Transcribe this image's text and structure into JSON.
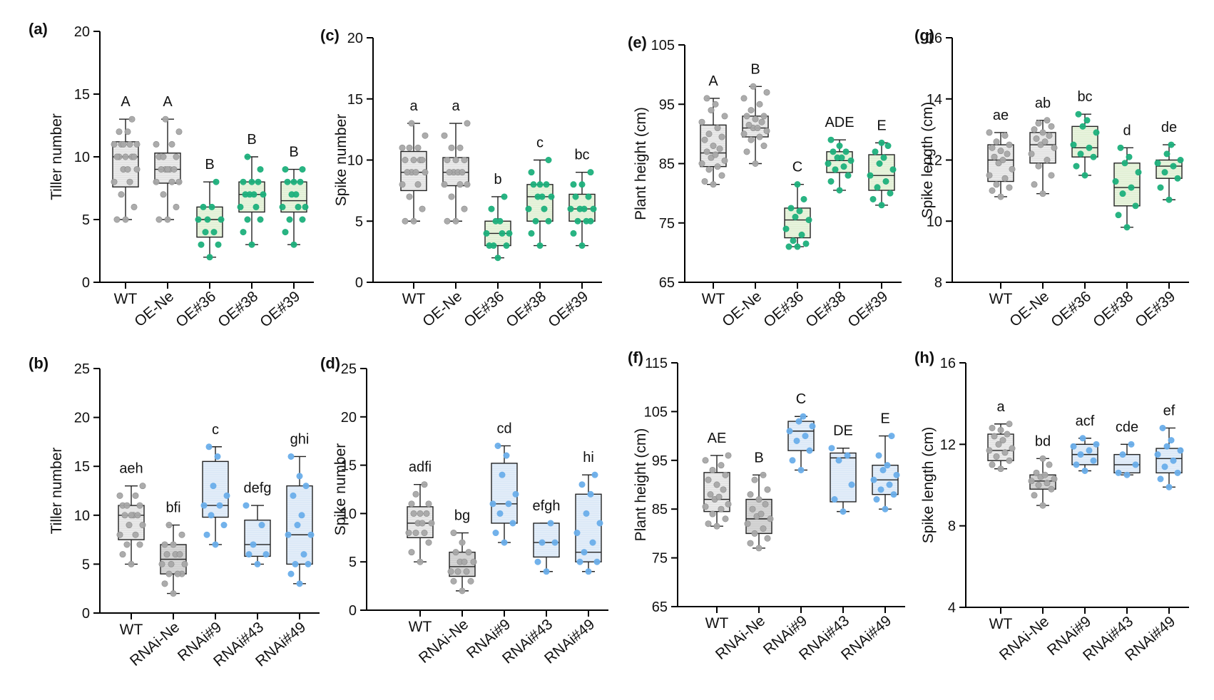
{
  "figure": {
    "colors": {
      "gray_box": "#e3e3e3",
      "gray_box_dark": "#cfcfcf",
      "gray_dot": "#a8a8a8",
      "green_box": "#e2f0d6",
      "green_dot": "#1db07c",
      "blue_box": "#dce9f7",
      "blue_dot": "#6aaeea",
      "axis": "#000000"
    }
  },
  "chart_data": [
    {
      "panel": "(a)",
      "type": "box",
      "ylabel": "Tiller number",
      "ylim": [
        0,
        20
      ],
      "yticks": [
        0,
        5,
        10,
        15,
        20
      ],
      "categories": [
        "WT",
        "OE-Ne",
        "OE#36",
        "OE#38",
        "OE#39"
      ],
      "box_styles": [
        "gray",
        "gray",
        "green",
        "green",
        "green"
      ],
      "letters": [
        "A",
        "A",
        "B",
        "B",
        "B"
      ],
      "stats": [
        {
          "min": 5,
          "q1": 7.6,
          "median": 10,
          "q3": 11.2,
          "max": 13
        },
        {
          "min": 5,
          "q1": 7.9,
          "median": 9,
          "q3": 10.3,
          "max": 13
        },
        {
          "min": 2,
          "q1": 3.6,
          "median": 5,
          "q3": 6,
          "max": 8
        },
        {
          "min": 3,
          "q1": 5.6,
          "median": 7,
          "q3": 8,
          "max": 10
        },
        {
          "min": 3,
          "q1": 5.6,
          "median": 6.5,
          "q3": 8,
          "max": 9
        }
      ],
      "points": [
        [
          5,
          5,
          6,
          7,
          8,
          8,
          9,
          9,
          9,
          10,
          10,
          10,
          10,
          10,
          11,
          11,
          11,
          11,
          11,
          12,
          12,
          13
        ],
        [
          5,
          5,
          6,
          7,
          8,
          8,
          8,
          9,
          9,
          9,
          9,
          9,
          10,
          10,
          10,
          11,
          11,
          12,
          13
        ],
        [
          2,
          3,
          3,
          4,
          4,
          5,
          5,
          5,
          6,
          6,
          8
        ],
        [
          3,
          4,
          5,
          5,
          6,
          6,
          7,
          7,
          7,
          7,
          8,
          8,
          8,
          9,
          10
        ],
        [
          3,
          4,
          5,
          5,
          6,
          6,
          6,
          7,
          7,
          8,
          8,
          8,
          9,
          9
        ]
      ]
    },
    {
      "panel": "(c)",
      "type": "box",
      "ylabel": "Spike number",
      "ylim": [
        0,
        20
      ],
      "yticks": [
        0,
        5,
        10,
        15,
        20
      ],
      "categories": [
        "WT",
        "OE-Ne",
        "OE#36",
        "OE#38",
        "OE#39"
      ],
      "box_styles": [
        "gray",
        "gray",
        "green",
        "green",
        "green"
      ],
      "letters": [
        "a",
        "a",
        "b",
        "c",
        "bc"
      ],
      "stats": [
        {
          "min": 5,
          "q1": 7.5,
          "median": 9,
          "q3": 10.7,
          "max": 13
        },
        {
          "min": 5,
          "q1": 7.9,
          "median": 9,
          "q3": 10.2,
          "max": 13
        },
        {
          "min": 2,
          "q1": 3,
          "median": 4,
          "q3": 5,
          "max": 7
        },
        {
          "min": 3,
          "q1": 5,
          "median": 7,
          "q3": 8,
          "max": 10
        },
        {
          "min": 3,
          "q1": 5,
          "median": 6,
          "q3": 7.2,
          "max": 9
        }
      ],
      "points": [
        [
          5,
          5,
          6,
          7,
          8,
          8,
          9,
          9,
          9,
          9,
          10,
          10,
          10,
          10,
          11,
          11,
          11,
          12,
          13
        ],
        [
          5,
          5,
          6,
          7,
          8,
          8,
          8,
          9,
          9,
          9,
          9,
          10,
          10,
          10,
          11,
          11,
          12,
          13
        ],
        [
          2,
          3,
          3,
          3,
          4,
          4,
          4,
          5,
          5,
          6,
          7
        ],
        [
          3,
          4,
          5,
          5,
          6,
          6,
          7,
          7,
          7,
          8,
          8,
          8,
          9,
          10
        ],
        [
          3,
          4,
          5,
          5,
          5,
          6,
          6,
          6,
          6,
          7,
          7,
          8,
          8,
          9
        ]
      ]
    },
    {
      "panel": "(e)",
      "type": "box",
      "ylabel": "Plant height (cm)",
      "ylim": [
        65,
        105
      ],
      "yticks": [
        65,
        75,
        85,
        95,
        105
      ],
      "categories": [
        "WT",
        "OE-Ne",
        "OE#36",
        "OE#38",
        "OE#39"
      ],
      "box_styles": [
        "gray",
        "gray",
        "green",
        "green",
        "green"
      ],
      "letters": [
        "A",
        "B",
        "C",
        "ADE",
        "E"
      ],
      "stats": [
        {
          "min": 81.5,
          "q1": 84.5,
          "median": 86.8,
          "q3": 91.5,
          "max": 96
        },
        {
          "min": 85,
          "q1": 89.5,
          "median": 91,
          "q3": 93,
          "max": 98
        },
        {
          "min": 71,
          "q1": 72.5,
          "median": 75.5,
          "q3": 77.5,
          "max": 81.5
        },
        {
          "min": 80.5,
          "q1": 83.5,
          "median": 85.5,
          "q3": 87,
          "max": 89
        },
        {
          "min": 78,
          "q1": 80.5,
          "median": 83,
          "q3": 86.5,
          "max": 88.5
        }
      ],
      "points": [
        [
          81.5,
          82,
          83,
          84,
          84.5,
          85,
          85.5,
          86,
          86.5,
          87,
          87.5,
          88,
          89,
          89.5,
          90,
          91,
          92,
          93,
          94,
          95,
          96
        ],
        [
          85,
          87,
          88,
          89,
          89.5,
          90,
          90.5,
          91,
          91,
          91.5,
          92,
          92.5,
          93,
          93,
          94,
          95,
          96,
          97,
          98
        ],
        [
          71,
          71,
          71.5,
          72,
          73,
          74,
          75.5,
          76,
          77,
          77.5,
          79,
          81.5
        ],
        [
          80.5,
          82,
          83,
          84,
          84.5,
          85,
          85.5,
          86,
          86,
          87,
          87,
          88,
          89
        ],
        [
          78,
          79,
          80,
          81,
          82,
          83,
          84,
          85,
          86,
          87,
          88,
          88.5
        ]
      ]
    },
    {
      "panel": "(g)",
      "type": "box",
      "ylabel": "Spike length (cm)",
      "ylim": [
        8,
        16
      ],
      "yticks": [
        8,
        10,
        12,
        14,
        16
      ],
      "categories": [
        "WT",
        "OE-Ne",
        "OE#36",
        "OE#38",
        "OE#39"
      ],
      "box_styles": [
        "gray",
        "gray",
        "green",
        "green",
        "green"
      ],
      "letters": [
        "ae",
        "ab",
        "bc",
        "d",
        "de"
      ],
      "stats": [
        {
          "min": 10.8,
          "q1": 11.3,
          "median": 12,
          "q3": 12.5,
          "max": 12.9
        },
        {
          "min": 10.9,
          "q1": 11.9,
          "median": 12.5,
          "q3": 12.9,
          "max": 13.3
        },
        {
          "min": 11.5,
          "q1": 12.1,
          "median": 12.4,
          "q3": 13.1,
          "max": 13.5
        },
        {
          "min": 9.8,
          "q1": 10.5,
          "median": 11.1,
          "q3": 11.9,
          "max": 12.4
        },
        {
          "min": 10.7,
          "q1": 11.4,
          "median": 11.8,
          "q3": 12,
          "max": 12.5
        }
      ],
      "points": [
        [
          10.8,
          11,
          11.1,
          11.2,
          11.4,
          11.5,
          11.7,
          11.9,
          12,
          12.1,
          12.2,
          12.3,
          12.4,
          12.5,
          12.6,
          12.8,
          12.9
        ],
        [
          10.9,
          11.2,
          11.5,
          11.8,
          12,
          12.2,
          12.4,
          12.5,
          12.6,
          12.7,
          12.8,
          12.9,
          13,
          13.1,
          13.2,
          13.3
        ],
        [
          11.5,
          11.8,
          12.1,
          12.2,
          12.4,
          12.5,
          12.9,
          13.1,
          13.3,
          13.5
        ],
        [
          9.8,
          10.2,
          10.5,
          10.9,
          11.1,
          11.3,
          11.6,
          11.9,
          12.1,
          12.4
        ],
        [
          10.7,
          11.1,
          11.4,
          11.6,
          11.8,
          11.9,
          12,
          12.2,
          12.5
        ]
      ]
    },
    {
      "panel": "(b)",
      "type": "box",
      "ylabel": "Tiller number",
      "ylim": [
        0,
        25
      ],
      "yticks": [
        0,
        5,
        10,
        15,
        20,
        25
      ],
      "categories": [
        "WT",
        "RNAi-Ne",
        "RNAi#9",
        "RNAi#43",
        "RNAi#49"
      ],
      "box_styles": [
        "gray",
        "gray",
        "blue",
        "blue",
        "blue"
      ],
      "letters": [
        "aeh",
        "bfi",
        "c",
        "defg",
        "ghi"
      ],
      "stats": [
        {
          "min": 5,
          "q1": 7.5,
          "median": 10,
          "q3": 11,
          "max": 13
        },
        {
          "min": 2,
          "q1": 4,
          "median": 5.5,
          "q3": 7,
          "max": 9
        },
        {
          "min": 7,
          "q1": 9.8,
          "median": 11,
          "q3": 15.5,
          "max": 17
        },
        {
          "min": 5,
          "q1": 5.8,
          "median": 7,
          "q3": 9.5,
          "max": 11
        },
        {
          "min": 3,
          "q1": 5,
          "median": 8,
          "q3": 13,
          "max": 16
        }
      ],
      "points": [
        [
          5,
          6,
          7,
          7,
          8,
          8,
          9,
          9,
          10,
          10,
          10,
          10,
          11,
          11,
          11,
          12,
          12,
          13
        ],
        [
          2,
          3,
          4,
          4,
          4,
          5,
          5,
          5,
          6,
          6,
          6,
          7,
          7,
          8,
          9
        ],
        [
          7,
          8,
          9,
          10,
          11,
          11,
          12,
          13,
          16,
          17
        ],
        [
          5,
          6,
          6,
          7,
          9,
          11
        ],
        [
          3,
          4,
          5,
          5,
          6,
          8,
          8,
          9,
          10,
          12,
          13,
          14,
          16
        ]
      ]
    },
    {
      "panel": "(d)",
      "type": "box",
      "ylabel": "Spike number",
      "ylim": [
        0,
        25
      ],
      "yticks": [
        0,
        5,
        10,
        15,
        20,
        25
      ],
      "categories": [
        "WT",
        "RNAi-Ne",
        "RNAi#9",
        "RNAi#43",
        "RNAi#49"
      ],
      "box_styles": [
        "gray",
        "gray",
        "blue",
        "blue",
        "blue"
      ],
      "letters": [
        "adfi",
        "bg",
        "cd",
        "efgh",
        "hi"
      ],
      "stats": [
        {
          "min": 5,
          "q1": 7.5,
          "median": 9,
          "q3": 10.7,
          "max": 13
        },
        {
          "min": 2,
          "q1": 3.5,
          "median": 4.5,
          "q3": 6,
          "max": 8
        },
        {
          "min": 7,
          "q1": 9,
          "median": 11,
          "q3": 15.2,
          "max": 17
        },
        {
          "min": 4,
          "q1": 5.5,
          "median": 7,
          "q3": 9,
          "max": 9
        },
        {
          "min": 4,
          "q1": 5,
          "median": 6,
          "q3": 12,
          "max": 14
        }
      ],
      "points": [
        [
          5,
          6,
          7,
          8,
          8,
          8,
          9,
          9,
          9,
          10,
          10,
          10,
          11,
          11,
          12,
          13
        ],
        [
          2,
          3,
          3,
          4,
          4,
          4,
          5,
          5,
          5,
          6,
          6,
          7,
          8
        ],
        [
          7,
          8,
          9,
          10,
          11,
          11,
          12,
          14,
          16,
          17
        ],
        [
          4,
          5,
          7,
          7,
          9
        ],
        [
          4,
          5,
          5,
          6,
          7,
          8,
          9,
          10,
          12,
          13,
          14
        ]
      ]
    },
    {
      "panel": "(f)",
      "type": "box",
      "ylabel": "Plant height (cm)",
      "ylim": [
        65,
        115
      ],
      "yticks": [
        65,
        75,
        85,
        95,
        105,
        115
      ],
      "categories": [
        "WT",
        "RNAi-Ne",
        "RNAi#9",
        "RNAi#43",
        "RNAi#49"
      ],
      "box_styles": [
        "gray",
        "gray",
        "blue",
        "blue",
        "blue"
      ],
      "letters": [
        "AE",
        "B",
        "C",
        "DE",
        "E"
      ],
      "stats": [
        {
          "min": 81.5,
          "q1": 84.5,
          "median": 87,
          "q3": 92.5,
          "max": 96
        },
        {
          "min": 77,
          "q1": 80,
          "median": 83,
          "q3": 87,
          "max": 92
        },
        {
          "min": 93,
          "q1": 97,
          "median": 101,
          "q3": 103,
          "max": 104
        },
        {
          "min": 84.5,
          "q1": 86.5,
          "median": 95.5,
          "q3": 96.5,
          "max": 97.5
        },
        {
          "min": 85,
          "q1": 88,
          "median": 91,
          "q3": 94,
          "max": 100
        }
      ],
      "points": [
        [
          81.5,
          82,
          83,
          84,
          85,
          85.5,
          86,
          87,
          87.5,
          88,
          89,
          90,
          91,
          92,
          93,
          94,
          95,
          96
        ],
        [
          77,
          78,
          79,
          80,
          81,
          82,
          83,
          83.5,
          84,
          85,
          86,
          87,
          88,
          89,
          91,
          92
        ],
        [
          93,
          95,
          97,
          99,
          100,
          101,
          102,
          103,
          104
        ],
        [
          84.5,
          87,
          90,
          95,
          96,
          97.5
        ],
        [
          85,
          87,
          88,
          89,
          90,
          91,
          92,
          93,
          94,
          96,
          100
        ]
      ]
    },
    {
      "panel": "(h)",
      "type": "box",
      "ylabel": "Spike length (cm)",
      "ylim": [
        4,
        16
      ],
      "yticks": [
        4,
        8,
        12,
        16
      ],
      "categories": [
        "WT",
        "RNAi-Ne",
        "RNAi#9",
        "RNAi#43",
        "RNAi#49"
      ],
      "box_styles": [
        "gray",
        "gray",
        "blue",
        "blue",
        "blue"
      ],
      "letters": [
        "a",
        "bd",
        "acf",
        "cde",
        "ef"
      ],
      "stats": [
        {
          "min": 10.8,
          "q1": 11.2,
          "median": 11.7,
          "q3": 12.5,
          "max": 13
        },
        {
          "min": 9,
          "q1": 9.8,
          "median": 10.2,
          "q3": 10.5,
          "max": 11.3
        },
        {
          "min": 10.7,
          "q1": 11,
          "median": 11.5,
          "q3": 12,
          "max": 12.3
        },
        {
          "min": 10.5,
          "q1": 10.6,
          "median": 11,
          "q3": 11.5,
          "max": 12
        },
        {
          "min": 9.9,
          "q1": 10.6,
          "median": 11.3,
          "q3": 11.8,
          "max": 12.8
        }
      ],
      "points": [
        [
          10.8,
          11,
          11.2,
          11.4,
          11.6,
          11.7,
          11.8,
          12,
          12.2,
          12.4,
          12.5,
          12.7,
          12.8,
          13
        ],
        [
          9,
          9.5,
          9.8,
          10,
          10.1,
          10.2,
          10.3,
          10.4,
          10.5,
          10.6,
          11,
          11.3
        ],
        [
          10.7,
          11,
          11.2,
          11.5,
          11.7,
          11.9,
          12,
          12.3
        ],
        [
          10.5,
          10.6,
          11,
          11.5,
          12
        ],
        [
          9.9,
          10.3,
          10.6,
          10.9,
          11.2,
          11.5,
          11.7,
          11.9,
          12.2,
          12.8
        ]
      ]
    }
  ]
}
